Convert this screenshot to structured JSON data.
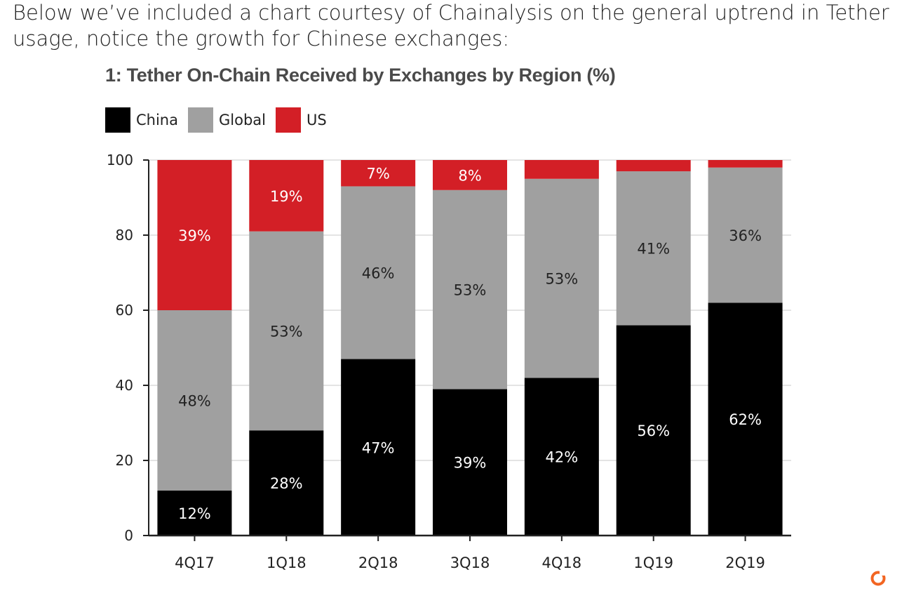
{
  "intro_text": "Below we’ve included a chart courtesy of Chainalysis on the general uptrend in Tether usage, notice the growth for Chinese exchanges:",
  "colors": {
    "china": "#000000",
    "global": "#a0a0a0",
    "us": "#d31f26",
    "brand": "#f26522"
  },
  "icons": {
    "corner_logo": "orange-ring-logo-icon"
  },
  "chart_data": {
    "type": "bar",
    "stacked": true,
    "title": "1: Tether On-Chain Received by Exchanges by Region (%)",
    "xlabel": "",
    "ylabel": "",
    "ylim": [
      0,
      100
    ],
    "yticks": [
      0,
      20,
      40,
      60,
      80,
      100
    ],
    "grid": true,
    "legend_position": "top-left",
    "categories": [
      "4Q17",
      "1Q18",
      "2Q18",
      "3Q18",
      "4Q18",
      "1Q19",
      "2Q19"
    ],
    "series": [
      {
        "name": "China",
        "color": "#000000",
        "values": [
          12,
          28,
          47,
          39,
          42,
          56,
          62
        ],
        "labels": [
          "12%",
          "28%",
          "47%",
          "39%",
          "42%",
          "56%",
          "62%"
        ]
      },
      {
        "name": "Global",
        "color": "#a0a0a0",
        "values": [
          48,
          53,
          46,
          53,
          53,
          41,
          36
        ],
        "labels": [
          "48%",
          "53%",
          "46%",
          "53%",
          "53%",
          "41%",
          "36%"
        ]
      },
      {
        "name": "US",
        "color": "#d31f26",
        "values": [
          39,
          19,
          7,
          8,
          5,
          3,
          3
        ],
        "labels": [
          "39%",
          "19%",
          "7%",
          "8%",
          "",
          "",
          ""
        ]
      }
    ]
  }
}
